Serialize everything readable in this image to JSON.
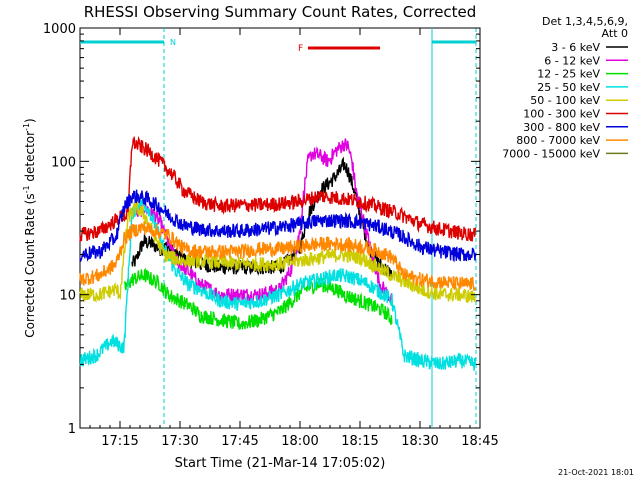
{
  "chart_data": {
    "type": "line",
    "title": "RHESSI Observing Summary Count Rates, Corrected",
    "xlabel": "Start Time (21-Mar-14 17:05:02)",
    "ylabel_main": "Corrected Count Rate (s",
    "ylabel_sup1": "-1",
    "ylabel_mid": " detector",
    "ylabel_sup2": "-1",
    "ylabel_end": ")",
    "yscale": "log",
    "ylim": [
      1,
      1000
    ],
    "xlim_minutes": [
      0,
      100
    ],
    "x_ticks": [
      {
        "m": 10,
        "label": "17:15"
      },
      {
        "m": 25,
        "label": "17:30"
      },
      {
        "m": 40,
        "label": "17:45"
      },
      {
        "m": 55,
        "label": "18:00"
      },
      {
        "m": 70,
        "label": "18:15"
      },
      {
        "m": 85,
        "label": "18:30"
      },
      {
        "m": 100,
        "label": "18:45"
      }
    ],
    "y_ticks": [
      {
        "v": 1,
        "label": "1"
      },
      {
        "v": 10,
        "label": "10"
      },
      {
        "v": 100,
        "label": "100"
      },
      {
        "v": 1000,
        "label": "1000"
      }
    ],
    "legend_header": [
      "Det 1,3,4,5,6,9,",
      "Att 0"
    ],
    "legend_position": "right",
    "footer_date": "21-Oct-2021 18:01",
    "night_label": "N",
    "flare_label": "F",
    "flare_interval": [
      57,
      75
    ],
    "night_intervals": [
      [
        0,
        21
      ],
      [
        88,
        99
      ]
    ],
    "saa_boundaries": [
      21,
      88,
      99
    ],
    "series": [
      {
        "name": "3 - 6 keV",
        "color": "#000000",
        "points": [
          [
            13,
            17
          ],
          [
            14,
            18
          ],
          [
            15,
            22
          ],
          [
            16,
            25
          ],
          [
            18,
            24
          ],
          [
            20,
            22
          ],
          [
            22,
            23
          ],
          [
            24,
            20
          ],
          [
            27,
            18
          ],
          [
            30,
            17
          ],
          [
            35,
            16
          ],
          [
            40,
            16
          ],
          [
            45,
            16
          ],
          [
            50,
            16
          ],
          [
            52,
            18
          ],
          [
            55,
            22
          ],
          [
            57,
            40
          ],
          [
            60,
            60
          ],
          [
            63,
            72
          ],
          [
            65,
            85
          ],
          [
            66,
            95
          ],
          [
            67,
            85
          ],
          [
            69,
            55
          ],
          [
            71,
            30
          ],
          [
            73,
            20
          ],
          [
            75,
            17
          ],
          [
            77,
            15
          ],
          [
            78,
            14
          ]
        ]
      },
      {
        "name": "6 - 12 keV",
        "color": "#e000e0",
        "points": [
          [
            14,
            40
          ],
          [
            16,
            45
          ],
          [
            18,
            42
          ],
          [
            20,
            35
          ],
          [
            22,
            25
          ],
          [
            24,
            18
          ],
          [
            27,
            15
          ],
          [
            30,
            12
          ],
          [
            35,
            10
          ],
          [
            40,
            10
          ],
          [
            45,
            10
          ],
          [
            50,
            11
          ],
          [
            53,
            16
          ],
          [
            55,
            30
          ],
          [
            56,
            60
          ],
          [
            57,
            100
          ],
          [
            58,
            115
          ],
          [
            60,
            110
          ],
          [
            62,
            100
          ],
          [
            64,
            120
          ],
          [
            66,
            135
          ],
          [
            67,
            130
          ],
          [
            68,
            100
          ],
          [
            69,
            60
          ],
          [
            71,
            35
          ],
          [
            73,
            20
          ],
          [
            75,
            12
          ],
          [
            77,
            10
          ],
          [
            78,
            9
          ]
        ]
      },
      {
        "name": "12 - 25 keV",
        "color": "#00e000",
        "points": [
          [
            11,
            11
          ],
          [
            13,
            13
          ],
          [
            16,
            14
          ],
          [
            18,
            13
          ],
          [
            20,
            12
          ],
          [
            22,
            10
          ],
          [
            25,
            9
          ],
          [
            28,
            8
          ],
          [
            30,
            7
          ],
          [
            35,
            6.5
          ],
          [
            40,
            6
          ],
          [
            45,
            6.5
          ],
          [
            50,
            7.5
          ],
          [
            53,
            9
          ],
          [
            56,
            11
          ],
          [
            60,
            12
          ],
          [
            64,
            11
          ],
          [
            66,
            10
          ],
          [
            68,
            9.5
          ],
          [
            72,
            8.5
          ],
          [
            76,
            7.5
          ],
          [
            78,
            6.5
          ]
        ]
      },
      {
        "name": "25 - 50 keV",
        "color": "#00e0e0",
        "points": [
          [
            0,
            3.2
          ],
          [
            4,
            3.5
          ],
          [
            8,
            4.5
          ],
          [
            11,
            4
          ],
          [
            13,
            40
          ],
          [
            15,
            50
          ],
          [
            17,
            45
          ],
          [
            19,
            32
          ],
          [
            21,
            22
          ],
          [
            24,
            15
          ],
          [
            27,
            12
          ],
          [
            30,
            11
          ],
          [
            35,
            9
          ],
          [
            40,
            8.5
          ],
          [
            45,
            9
          ],
          [
            50,
            10
          ],
          [
            55,
            12
          ],
          [
            60,
            13
          ],
          [
            64,
            14
          ],
          [
            68,
            13.5
          ],
          [
            72,
            12
          ],
          [
            76,
            10
          ],
          [
            78,
            9
          ],
          [
            81,
            3.5
          ],
          [
            85,
            3.2
          ],
          [
            90,
            3
          ],
          [
            95,
            3.2
          ],
          [
            99,
            3
          ]
        ]
      },
      {
        "name": "50 - 100 keV",
        "color": "#cccc00",
        "points": [
          [
            0,
            10
          ],
          [
            5,
            10
          ],
          [
            9,
            11
          ],
          [
            10,
            10
          ],
          [
            12,
            38
          ],
          [
            14,
            45
          ],
          [
            16,
            40
          ],
          [
            18,
            30
          ],
          [
            21,
            20
          ],
          [
            25,
            18
          ],
          [
            30,
            18
          ],
          [
            40,
            17
          ],
          [
            50,
            17
          ],
          [
            55,
            18
          ],
          [
            60,
            19
          ],
          [
            65,
            20
          ],
          [
            70,
            19
          ],
          [
            73,
            17
          ],
          [
            76,
            15
          ],
          [
            80,
            13
          ],
          [
            85,
            11
          ],
          [
            90,
            10
          ],
          [
            95,
            10
          ],
          [
            99,
            9.5
          ]
        ]
      },
      {
        "name": "100 - 300 keV",
        "color": "#dd0000",
        "points": [
          [
            0,
            28
          ],
          [
            5,
            30
          ],
          [
            10,
            38
          ],
          [
            12,
            40
          ],
          [
            13,
            140
          ],
          [
            15,
            130
          ],
          [
            17,
            120
          ],
          [
            20,
            100
          ],
          [
            23,
            80
          ],
          [
            26,
            60
          ],
          [
            30,
            50
          ],
          [
            35,
            46
          ],
          [
            40,
            47
          ],
          [
            45,
            47
          ],
          [
            50,
            48
          ],
          [
            55,
            50
          ],
          [
            60,
            55
          ],
          [
            65,
            53
          ],
          [
            70,
            50
          ],
          [
            75,
            45
          ],
          [
            80,
            40
          ],
          [
            85,
            34
          ],
          [
            90,
            31
          ],
          [
            95,
            29
          ],
          [
            99,
            28
          ]
        ]
      },
      {
        "name": "300 - 800 keV",
        "color": "#0000dd",
        "points": [
          [
            0,
            20
          ],
          [
            5,
            21
          ],
          [
            9,
            27
          ],
          [
            11,
            45
          ],
          [
            13,
            55
          ],
          [
            15,
            54
          ],
          [
            17,
            52
          ],
          [
            20,
            45
          ],
          [
            23,
            38
          ],
          [
            26,
            33
          ],
          [
            30,
            31
          ],
          [
            35,
            30
          ],
          [
            40,
            30
          ],
          [
            45,
            31
          ],
          [
            50,
            32
          ],
          [
            55,
            34
          ],
          [
            60,
            36
          ],
          [
            65,
            36
          ],
          [
            70,
            35
          ],
          [
            75,
            32
          ],
          [
            80,
            28
          ],
          [
            85,
            23
          ],
          [
            90,
            21
          ],
          [
            95,
            20
          ],
          [
            99,
            20
          ]
        ]
      },
      {
        "name": "800 - 7000 keV",
        "color": "#ff8800",
        "points": [
          [
            0,
            13
          ],
          [
            5,
            14
          ],
          [
            9,
            17
          ],
          [
            11,
            26
          ],
          [
            13,
            30
          ],
          [
            16,
            32
          ],
          [
            19,
            30
          ],
          [
            22,
            28
          ],
          [
            26,
            22
          ],
          [
            30,
            21
          ],
          [
            35,
            21
          ],
          [
            40,
            21
          ],
          [
            45,
            22
          ],
          [
            50,
            22
          ],
          [
            55,
            23
          ],
          [
            60,
            24
          ],
          [
            65,
            24
          ],
          [
            70,
            23
          ],
          [
            75,
            21
          ],
          [
            78,
            19
          ],
          [
            81,
            14
          ],
          [
            85,
            13
          ],
          [
            90,
            12.5
          ],
          [
            95,
            12
          ],
          [
            99,
            12
          ]
        ]
      },
      {
        "name": "7000 - 15000 keV",
        "color": "#6b7a1e",
        "points": []
      }
    ]
  }
}
